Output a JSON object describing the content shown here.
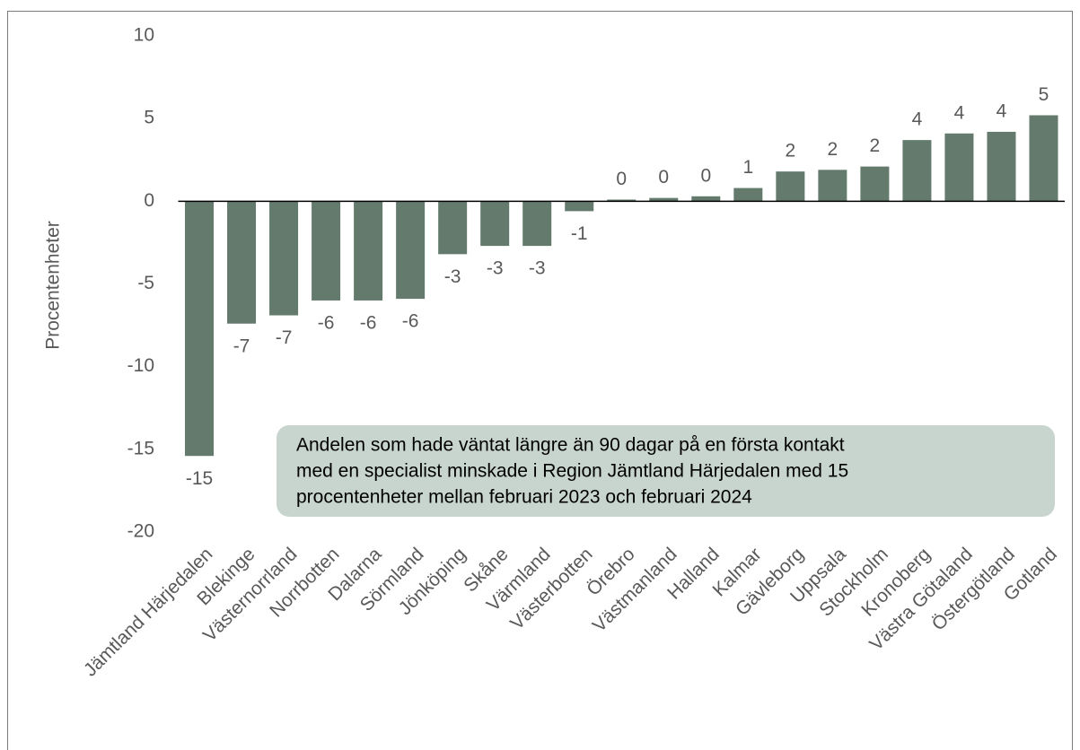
{
  "chart_data": {
    "type": "bar",
    "y_label": "Procentenheter",
    "categories": [
      "Jämtland Härjedalen",
      "Blekinge",
      "Västernorrland",
      "Norrbotten",
      "Dalarna",
      "Sörmland",
      "Jönköping",
      "Skåne",
      "Värmland",
      "Västerbotten",
      "Örebro",
      "Västmanland",
      "Halland",
      "Kalmar",
      "Gävleborg",
      "Uppsala",
      "Stockholm",
      "Kronoberg",
      "Västra Götaland",
      "Östergötland",
      "Gotland"
    ],
    "values": [
      -15.4,
      -7.4,
      -6.9,
      -6.0,
      -6.0,
      -5.9,
      -3.2,
      -2.7,
      -2.7,
      -0.6,
      0.1,
      0.2,
      0.3,
      0.8,
      1.8,
      1.9,
      2.1,
      3.7,
      4.1,
      4.2,
      5.2
    ],
    "value_labels": [
      "-15",
      "-7",
      "-7",
      "-6",
      "-6",
      "-6",
      "-3",
      "-3",
      "-3",
      "-1",
      "0",
      "0",
      "0",
      "1",
      "2",
      "2",
      "2",
      "4",
      "4",
      "4",
      "5"
    ],
    "color": "#637a6d",
    "ylim": [
      -20,
      10
    ],
    "yticks": [
      10,
      5,
      0,
      -5,
      -10,
      -15,
      -20
    ],
    "grid": false,
    "annotation": [
      "Andelen som hade väntat längre än 90 dagar på en första kontakt",
      "med en specialist minskade i Region Jämtland Härjedalen med 15",
      "procentenheter mellan februari 2023 och februari 2024"
    ]
  }
}
